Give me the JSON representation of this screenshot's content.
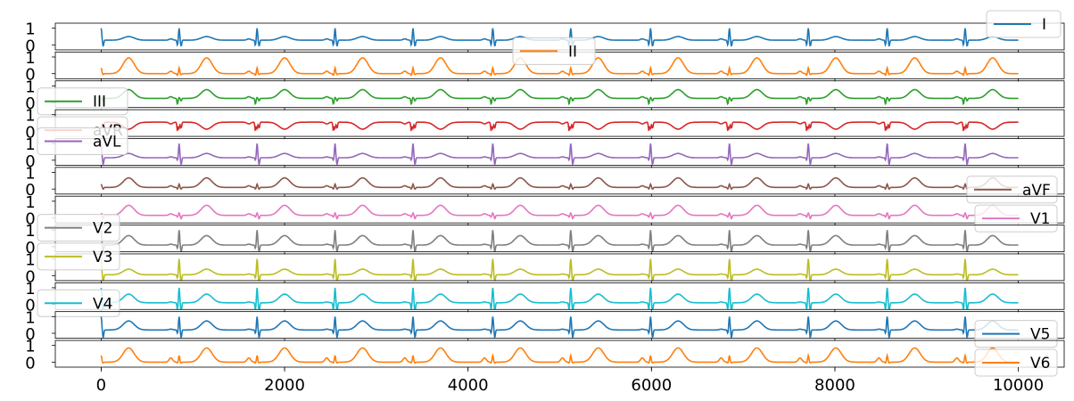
{
  "chart_data": {
    "type": "line",
    "title": "",
    "xlabel": "",
    "ylabel": "",
    "xlim": [
      -500,
      10500
    ],
    "ylim": [
      -0.3,
      1.3
    ],
    "x_ticks": [
      0,
      2000,
      4000,
      6000,
      8000,
      10000
    ],
    "x_tick_labels": [
      "0",
      "2000",
      "4000",
      "6000",
      "8000",
      "10000"
    ],
    "y_ticks": [
      0,
      1
    ],
    "y_tick_labels": [
      "0",
      "1"
    ],
    "n_samples": 10000,
    "beat_times": [
      0,
      850,
      1700,
      2550,
      3400,
      4270,
      5120,
      5990,
      6850,
      7710,
      8570,
      9420
    ],
    "series": [
      {
        "name": "I",
        "color": "#1f77b4",
        "baseline": 0.28,
        "r": 1.0,
        "q": -0.3,
        "s": -0.35,
        "t": 0.3,
        "p": 0.08,
        "legend": "top-right"
      },
      {
        "name": "II",
        "color": "#ff7f0e",
        "baseline": 0.0,
        "r": 0.35,
        "q": -0.1,
        "s": -0.05,
        "t": 0.95,
        "p": 0.15,
        "legend": "upper-center"
      },
      {
        "name": "III",
        "color": "#2ca02c",
        "baseline": 0.25,
        "r": 0.3,
        "q": -0.35,
        "s": -0.15,
        "t": 0.6,
        "p": 0.1,
        "legend": "lower-left"
      },
      {
        "name": "aVR",
        "color": "#d62728",
        "baseline": 0.55,
        "r": 0.2,
        "q": -0.5,
        "s": -0.35,
        "t": -0.25,
        "p": -0.1,
        "legend": "lower-left"
      },
      {
        "name": "aVL",
        "color": "#9467bd",
        "baseline": 0.15,
        "r": 1.0,
        "q": -0.15,
        "s": -0.4,
        "t": 0.3,
        "p": 0.05,
        "legend": "left"
      },
      {
        "name": "aVF",
        "color": "#8c564b",
        "baseline": 0.1,
        "r": 0.3,
        "q": -0.1,
        "s": -0.1,
        "t": 0.6,
        "p": 0.1,
        "legend": "lower-right"
      },
      {
        "name": "V1",
        "color": "#e377c2",
        "baseline": 0.15,
        "r": 0.3,
        "q": -0.1,
        "s": -0.2,
        "t": 0.65,
        "p": 0.1,
        "legend": "lower-right"
      },
      {
        "name": "V2",
        "color": "#7f7f7f",
        "baseline": 0.1,
        "r": 1.0,
        "q": -0.2,
        "s": -0.4,
        "t": 0.6,
        "p": 0.05,
        "legend": "left"
      },
      {
        "name": "V3",
        "color": "#bcbd22",
        "baseline": 0.05,
        "r": 1.0,
        "q": -0.2,
        "s": -0.45,
        "t": 0.35,
        "p": 0.05,
        "legend": "left"
      },
      {
        "name": "V4",
        "color": "#17becf",
        "baseline": 0.1,
        "r": 1.0,
        "q": -0.4,
        "s": -0.5,
        "t": 0.55,
        "p": 0.05,
        "legend": "lower-left"
      },
      {
        "name": "V5",
        "color": "#1f77b4",
        "baseline": 0.2,
        "r": 1.0,
        "q": -0.2,
        "s": -0.45,
        "t": 0.6,
        "p": 0.05,
        "legend": "lower-right"
      },
      {
        "name": "V6",
        "color": "#ff7f0e",
        "baseline": 0.0,
        "r": 0.4,
        "q": -0.05,
        "s": -0.05,
        "t": 0.85,
        "p": 0.25,
        "legend": "lower-right"
      }
    ]
  }
}
